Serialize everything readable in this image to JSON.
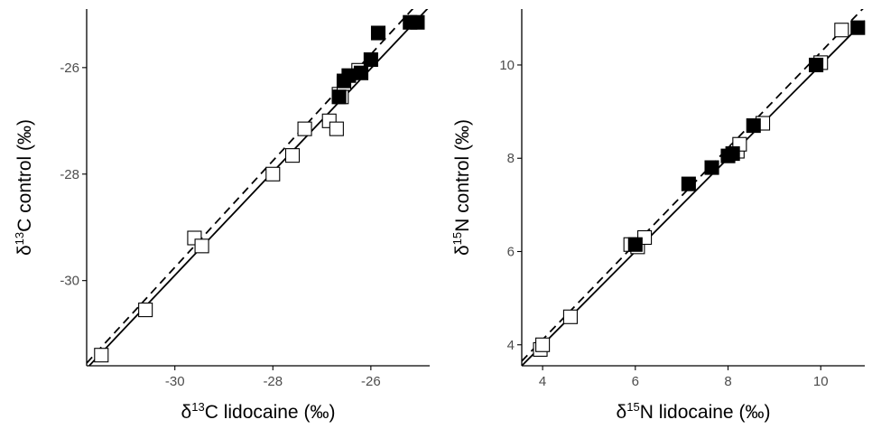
{
  "chart_data": [
    {
      "type": "scatter",
      "title": "",
      "xlabel": {
        "prefix": "δ",
        "sup": "13",
        "suffix": "C lidocaine (‰)"
      },
      "ylabel": {
        "prefix": "δ",
        "sup": "13",
        "suffix": "C control (‰)"
      },
      "xlim": [
        -31.8,
        -24.8
      ],
      "ylim": [
        -31.6,
        -24.9
      ],
      "xticks": [
        -30,
        -28,
        -26
      ],
      "xtick_labels": [
        "-30",
        "-28",
        "-26"
      ],
      "yticks": [
        -30,
        -28,
        -26
      ],
      "ytick_labels": [
        "-30",
        "-28",
        "-26"
      ],
      "grid": false,
      "series": [
        {
          "marker": "open-square",
          "x": [
            -31.5,
            -30.6,
            -29.6,
            -29.45,
            -28.0,
            -27.6,
            -27.35,
            -26.85,
            -26.7,
            -26.65,
            -26.6,
            -26.55,
            -26.25
          ],
          "y": [
            -31.4,
            -30.55,
            -29.2,
            -29.35,
            -28.0,
            -27.65,
            -27.15,
            -27.0,
            -27.15,
            -26.5,
            -26.55,
            -26.3,
            -26.05
          ]
        },
        {
          "marker": "filled-square",
          "x": [
            -26.65,
            -26.55,
            -26.45,
            -26.2,
            -26.0,
            -25.85,
            -25.2,
            -25.05
          ],
          "y": [
            -26.55,
            -26.25,
            -26.15,
            -26.1,
            -25.85,
            -25.35,
            -25.15,
            -25.15
          ]
        }
      ],
      "lines": [
        {
          "style": "solid",
          "x": [
            -31.8,
            -24.8
          ],
          "y": [
            -31.65,
            -24.85
          ]
        },
        {
          "style": "dashed",
          "x": [
            -31.8,
            -24.8
          ],
          "y": [
            -31.55,
            -24.55
          ]
        }
      ]
    },
    {
      "type": "scatter",
      "title": "",
      "xlabel": {
        "prefix": "δ",
        "sup": "15",
        "suffix": "N lidocaine (‰)"
      },
      "ylabel": {
        "prefix": "δ",
        "sup": "15",
        "suffix": "N control (‰)"
      },
      "xlim": [
        3.55,
        10.95
      ],
      "ylim": [
        3.55,
        11.2
      ],
      "xticks": [
        4,
        6,
        8,
        10
      ],
      "xtick_labels": [
        "4",
        "6",
        "8",
        "10"
      ],
      "yticks": [
        4,
        6,
        8,
        10
      ],
      "ytick_labels": [
        "4",
        "6",
        "8",
        "10"
      ],
      "grid": false,
      "series": [
        {
          "marker": "open-square",
          "x": [
            3.95,
            4.0,
            4.6,
            5.9,
            6.05,
            6.2,
            8.2,
            8.25,
            8.75,
            10.0,
            10.45
          ],
          "y": [
            3.9,
            4.0,
            4.6,
            6.15,
            6.1,
            6.3,
            8.15,
            8.3,
            8.75,
            10.05,
            10.75
          ]
        },
        {
          "marker": "filled-square",
          "x": [
            6.0,
            7.15,
            7.65,
            8.0,
            8.1,
            8.55,
            9.9,
            10.8
          ],
          "y": [
            6.15,
            7.45,
            7.8,
            8.05,
            8.1,
            8.7,
            10.0,
            10.8
          ]
        }
      ],
      "lines": [
        {
          "style": "solid",
          "x": [
            3.55,
            10.95
          ],
          "y": [
            3.55,
            10.95
          ]
        },
        {
          "style": "dashed",
          "x": [
            3.55,
            10.95
          ],
          "y": [
            3.65,
            11.25
          ]
        }
      ]
    }
  ]
}
